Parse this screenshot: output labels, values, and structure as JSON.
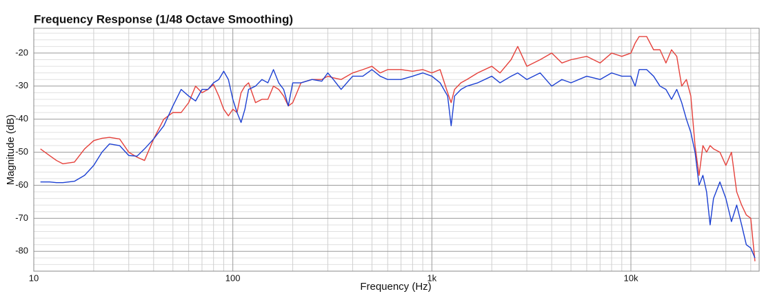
{
  "chart_data": {
    "type": "line",
    "title": "Frequency Response (1/48 Octave Smoothing)",
    "x_label": "Frequency (Hz)",
    "y_label": "Magnitude (dB)",
    "x_log": true,
    "grid": true,
    "xlim": [
      10,
      44100
    ],
    "ylim": [
      -86,
      -12.5
    ],
    "xticks": [
      10,
      100,
      {
        "value": 1000,
        "label": "1k"
      },
      {
        "value": 10000,
        "label": "10k"
      }
    ],
    "yticks": [
      -20,
      -30,
      -40,
      -50,
      -60,
      -70,
      -80
    ],
    "xminorticks": [
      20,
      30,
      40,
      50,
      60,
      70,
      80,
      90,
      200,
      300,
      400,
      500,
      600,
      700,
      800,
      900,
      2000,
      3000,
      4000,
      5000,
      6000,
      7000,
      8000,
      9000,
      20000,
      30000,
      40000
    ],
    "yminorticks": [
      -84,
      -82,
      -78,
      -76,
      -74,
      -72,
      -68,
      -66,
      -64,
      -62,
      -58,
      -56,
      -54,
      -52,
      -48,
      -46,
      -44,
      -42,
      -38,
      -36,
      -34,
      -32,
      -28,
      -26,
      -24,
      -22,
      -18,
      -16,
      -14
    ],
    "x": [
      10.8,
      12,
      13,
      14,
      16,
      18,
      20,
      22,
      24,
      27,
      30,
      33,
      36,
      40,
      45,
      50,
      55,
      60,
      65,
      70,
      75,
      80,
      85,
      90,
      95,
      100,
      105,
      110,
      115,
      120,
      130,
      140,
      150,
      160,
      170,
      180,
      190,
      200,
      220,
      250,
      280,
      300,
      320,
      350,
      400,
      450,
      500,
      550,
      600,
      700,
      800,
      900,
      1000,
      1100,
      1200,
      1250,
      1300,
      1400,
      1500,
      1700,
      2000,
      2200,
      2500,
      2700,
      3000,
      3500,
      4000,
      4500,
      5000,
      6000,
      7000,
      8000,
      9000,
      10000,
      10500,
      11000,
      12000,
      13000,
      14000,
      15000,
      16000,
      17000,
      18000,
      19000,
      20000,
      21000,
      22000,
      23000,
      24000,
      25000,
      26000,
      28000,
      30000,
      32000,
      34000,
      36000,
      38000,
      40000,
      42000
    ],
    "series": [
      {
        "color": "#e5403a",
        "values": [
          -49,
          -51,
          -52.5,
          -53.5,
          -53,
          -49,
          -46.5,
          -45.8,
          -45.5,
          -46,
          -50,
          -51.5,
          -52.5,
          -46,
          -40,
          -38,
          -38,
          -35,
          -30,
          -32,
          -31,
          -29.5,
          -33,
          -37,
          -39,
          -37,
          -38,
          -32,
          -30,
          -29,
          -35,
          -34,
          -34,
          -30,
          -31,
          -33,
          -36,
          -35,
          -29,
          -28,
          -28,
          -27,
          -27.5,
          -28,
          -26,
          -25,
          -24,
          -26,
          -25,
          -25,
          -25.5,
          -25,
          -26,
          -25,
          -32,
          -35,
          -31,
          -29,
          -28,
          -26,
          -24,
          -26,
          -22,
          -18,
          -24,
          -22,
          -20,
          -23,
          -22,
          -21,
          -23,
          -20,
          -21,
          -20,
          -17,
          -15,
          -15,
          -19,
          -19,
          -23,
          -19,
          -21,
          -30,
          -28,
          -33,
          -48,
          -57,
          -48,
          -50,
          -48,
          -49,
          -50,
          -54,
          -50,
          -62,
          -66,
          -69,
          -70,
          -83
        ]
      },
      {
        "color": "#1b3fd2",
        "values": [
          -59,
          -59,
          -59.2,
          -59.2,
          -58.8,
          -57,
          -54,
          -50,
          -47.5,
          -48,
          -51,
          -51.2,
          -49,
          -46,
          -42,
          -36,
          -31,
          -33,
          -34.5,
          -31,
          -31,
          -29,
          -28,
          -25.5,
          -28,
          -34,
          -38,
          -41,
          -37,
          -31,
          -30,
          -28,
          -29,
          -25,
          -29,
          -31,
          -36,
          -29,
          -29,
          -28,
          -28.5,
          -26,
          -28,
          -31,
          -27,
          -27,
          -25,
          -27,
          -28,
          -28,
          -27,
          -26,
          -27,
          -29,
          -33,
          -42,
          -33,
          -31,
          -30,
          -29,
          -27,
          -29,
          -27,
          -26,
          -28,
          -26,
          -30,
          -28,
          -29,
          -27,
          -28,
          -26,
          -27,
          -27,
          -30,
          -25,
          -25,
          -27,
          -30,
          -31,
          -34,
          -31,
          -35,
          -40,
          -44,
          -50,
          -60,
          -57,
          -62,
          -72,
          -64,
          -59,
          -64,
          -71,
          -66,
          -72,
          -78,
          -79,
          -82
        ]
      }
    ]
  }
}
